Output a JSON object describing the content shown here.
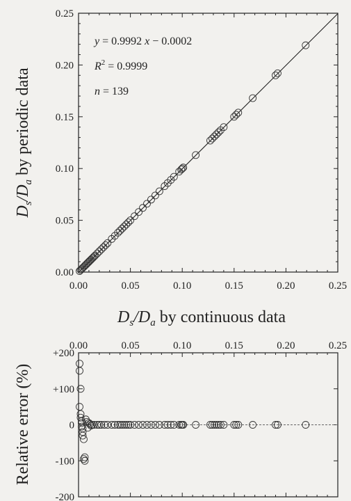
{
  "chart_data": [
    {
      "type": "scatter",
      "xlabel": {
        "pre": "D",
        "s": "s",
        "mid": "/D",
        "a": "a",
        "post": " by continuous data"
      },
      "ylabel": {
        "pre": "D",
        "s": "s",
        "mid": "/D",
        "a": "a",
        "post": " by periodic data"
      },
      "xlim": [
        0,
        0.25
      ],
      "ylim": [
        0,
        0.25
      ],
      "x_ticks": [
        "0.00",
        "0.05",
        "0.10",
        "0.15",
        "0.20",
        "0.25"
      ],
      "y_ticks": [
        "0.00",
        "0.05",
        "0.10",
        "0.15",
        "0.20",
        "0.25"
      ],
      "annotations": {
        "equation": {
          "y": "y",
          "mid": " = 0.9992 ",
          "x": "x",
          "post": " − 0.0002"
        },
        "r2": {
          "R": "R",
          "sup": "2",
          "post": " = 0.9999"
        },
        "n": {
          "n": "n",
          "post": " = 139"
        }
      },
      "fit": {
        "slope": 0.9992,
        "intercept": -0.0002
      },
      "x": [
        0.001,
        0.002,
        0.003,
        0.004,
        0.005,
        0.006,
        0.007,
        0.008,
        0.009,
        0.01,
        0.011,
        0.012,
        0.013,
        0.014,
        0.015,
        0.016,
        0.018,
        0.02,
        0.022,
        0.024,
        0.026,
        0.028,
        0.032,
        0.035,
        0.038,
        0.04,
        0.042,
        0.044,
        0.046,
        0.048,
        0.05,
        0.054,
        0.058,
        0.062,
        0.066,
        0.07,
        0.074,
        0.078,
        0.083,
        0.086,
        0.089,
        0.092,
        0.097,
        0.099,
        0.1,
        0.101,
        0.113,
        0.127,
        0.129,
        0.131,
        0.133,
        0.135,
        0.137,
        0.14,
        0.15,
        0.152,
        0.154,
        0.168,
        0.19,
        0.192,
        0.219
      ],
      "y": [
        0.001,
        0.002,
        0.003,
        0.004,
        0.005,
        0.006,
        0.007,
        0.008,
        0.009,
        0.01,
        0.011,
        0.012,
        0.013,
        0.014,
        0.015,
        0.016,
        0.018,
        0.02,
        0.022,
        0.024,
        0.026,
        0.028,
        0.032,
        0.035,
        0.038,
        0.04,
        0.042,
        0.044,
        0.046,
        0.048,
        0.05,
        0.054,
        0.058,
        0.062,
        0.066,
        0.07,
        0.074,
        0.078,
        0.083,
        0.086,
        0.089,
        0.092,
        0.097,
        0.099,
        0.1,
        0.101,
        0.113,
        0.127,
        0.129,
        0.131,
        0.133,
        0.135,
        0.137,
        0.14,
        0.15,
        0.152,
        0.154,
        0.168,
        0.19,
        0.192,
        0.219
      ]
    },
    {
      "type": "scatter",
      "ylabel": "Relative error (%)",
      "xlim": [
        0,
        0.25
      ],
      "ylim": [
        -200,
        200
      ],
      "x_ticks": [
        "0.00",
        "0.05",
        "0.10",
        "0.15",
        "0.20",
        "0.25"
      ],
      "y_ticks": [
        "+200",
        "+100",
        "0",
        "-100",
        "-200"
      ],
      "y_tick_values": [
        200,
        100,
        0,
        -100,
        -200
      ],
      "x": [
        0.001,
        0.001,
        0.002,
        0.001,
        0.002,
        0.002,
        0.003,
        0.003,
        0.003,
        0.004,
        0.004,
        0.004,
        0.005,
        0.005,
        0.006,
        0.006,
        0.007,
        0.008,
        0.009,
        0.01,
        0.011,
        0.012,
        0.013,
        0.015,
        0.018,
        0.02,
        0.022,
        0.025,
        0.028,
        0.032,
        0.035,
        0.038,
        0.04,
        0.042,
        0.044,
        0.046,
        0.048,
        0.05,
        0.054,
        0.058,
        0.062,
        0.066,
        0.07,
        0.074,
        0.078,
        0.083,
        0.086,
        0.089,
        0.092,
        0.097,
        0.099,
        0.1,
        0.101,
        0.113,
        0.127,
        0.129,
        0.131,
        0.133,
        0.135,
        0.137,
        0.14,
        0.15,
        0.152,
        0.154,
        0.168,
        0.19,
        0.192,
        0.219
      ],
      "y": [
        170,
        150,
        100,
        50,
        30,
        20,
        10,
        5,
        -5,
        -10,
        -20,
        -30,
        -40,
        -95,
        -100,
        -90,
        15,
        8,
        -8,
        5,
        2,
        -2,
        0,
        0,
        0,
        0,
        0,
        0,
        0,
        0,
        0,
        0,
        0,
        0,
        0,
        0,
        0,
        0,
        0,
        0,
        0,
        0,
        0,
        0,
        0,
        0,
        0,
        0,
        0,
        0,
        0,
        0,
        0,
        0,
        0,
        0,
        0,
        0,
        0,
        0,
        0,
        0,
        0,
        0,
        0,
        0,
        0,
        0
      ]
    }
  ]
}
